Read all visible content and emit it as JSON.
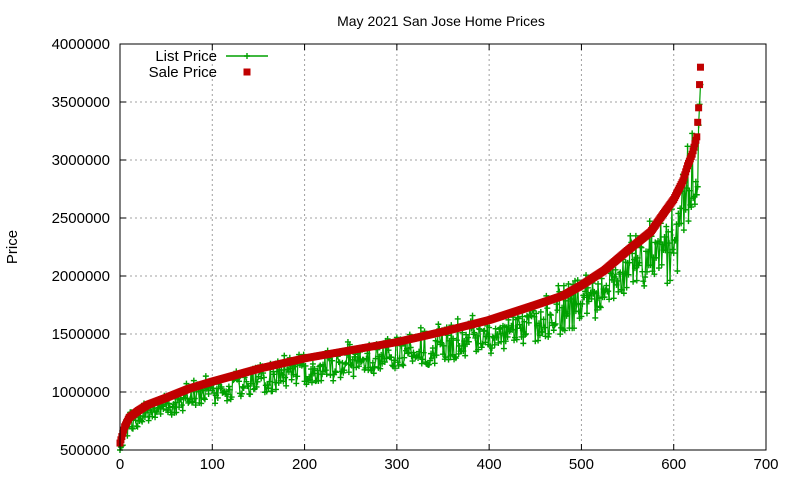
{
  "chart_data": {
    "type": "line",
    "title": "May 2021 San Jose Home Prices",
    "xlabel": "",
    "ylabel": "Price",
    "xlim": [
      0,
      700
    ],
    "ylim": [
      500000,
      4000000
    ],
    "x_ticks": [
      0,
      100,
      200,
      300,
      400,
      500,
      600,
      700
    ],
    "y_ticks": [
      500000,
      1000000,
      1500000,
      2000000,
      2500000,
      3000000,
      3500000,
      4000000
    ],
    "grid": true,
    "legend_position": "top-left",
    "n_points": 630,
    "sale_price_profile": {
      "x": [
        0,
        5,
        10,
        20,
        30,
        50,
        75,
        100,
        150,
        200,
        250,
        300,
        350,
        400,
        450,
        480,
        500,
        525,
        550,
        575,
        590,
        600,
        610,
        615,
        620,
        625,
        627,
        628,
        629
      ],
      "values": [
        560000,
        700000,
        780000,
        840000,
        890000,
        950000,
        1030000,
        1090000,
        1200000,
        1290000,
        1360000,
        1430000,
        1520000,
        1620000,
        1750000,
        1830000,
        1920000,
        2050000,
        2220000,
        2380000,
        2550000,
        2660000,
        2820000,
        2950000,
        3050000,
        3200000,
        3450000,
        3650000,
        3800000
      ]
    },
    "series": [
      {
        "name": "List Price",
        "color": "#00a000",
        "marker": "plus",
        "line": true
      },
      {
        "name": "Sale Price",
        "color": "#c00000",
        "marker": "square",
        "line": false
      }
    ]
  }
}
